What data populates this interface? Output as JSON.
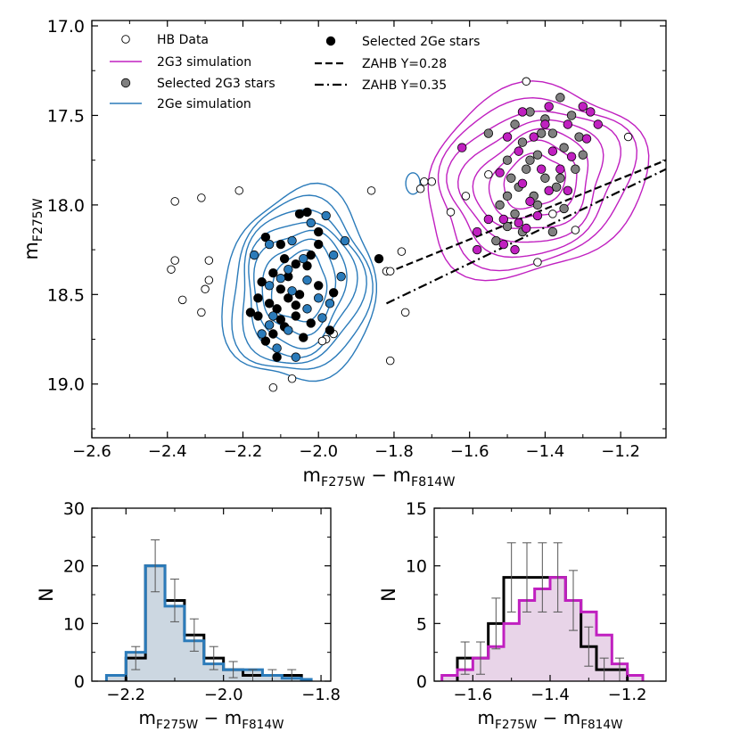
{
  "chart_data": [
    {
      "type": "scatter",
      "panel": "main",
      "xlabel": "m",
      "xlabel_sub": "F275W",
      "xlabel_mid": " − m",
      "xlabel_sub2": "F814W",
      "ylabel": "m",
      "ylabel_sub": "F275W",
      "xlim": [
        -2.6,
        -1.08
      ],
      "ylim": [
        19.3,
        16.97
      ],
      "xticks": [
        -2.6,
        -2.4,
        -2.2,
        -2.0,
        -1.8,
        -1.6,
        -1.4,
        -1.2
      ],
      "xtick_labels": [
        "−2.6",
        "−2.4",
        "−2.2",
        "−2.0",
        "−1.8",
        "−1.6",
        "−1.4",
        "−1.2"
      ],
      "yticks": [
        17.0,
        17.5,
        18.0,
        18.5,
        19.0
      ],
      "ytick_labels": [
        "17.0",
        "17.5",
        "18.0",
        "18.5",
        "19.0"
      ],
      "legend": {
        "placement": "top-left",
        "entries": [
          {
            "label": "HB Data",
            "marker": "open-circle"
          },
          {
            "label": "2G3 simulation",
            "marker": "line",
            "color": "#c020c0"
          },
          {
            "label": "Selected 2G3 stars",
            "marker": "filled-circle",
            "color": "#808080"
          },
          {
            "label": "2Ge simulation",
            "marker": "line",
            "color": "#2b7bba"
          },
          {
            "label": "Selected 2Ge stars",
            "marker": "filled-circle",
            "color": "#000000"
          },
          {
            "label": "ZAHB Y=0.28",
            "marker": "dashed-line",
            "color": "#000000"
          },
          {
            "label": "ZAHB Y=0.35",
            "marker": "dashdot-line",
            "color": "#000000"
          }
        ]
      },
      "colors": {
        "g3": "#c020c0",
        "ge": "#2b7bba",
        "gray": "#808080",
        "black": "#000000"
      },
      "series": [
        {
          "name": "HB Data",
          "style": "open",
          "points": [
            [
              -2.38,
              17.98
            ],
            [
              -2.31,
              17.96
            ],
            [
              -2.21,
              17.92
            ],
            [
              -2.38,
              18.31
            ],
            [
              -2.39,
              18.36
            ],
            [
              -2.29,
              18.31
            ],
            [
              -2.29,
              18.42
            ],
            [
              -2.3,
              18.47
            ],
            [
              -2.36,
              18.53
            ],
            [
              -2.31,
              18.6
            ],
            [
              -1.86,
              17.92
            ],
            [
              -1.82,
              18.37
            ],
            [
              -1.81,
              18.37
            ],
            [
              -1.78,
              18.26
            ],
            [
              -1.77,
              18.6
            ],
            [
              -1.81,
              18.87
            ],
            [
              -1.96,
              18.72
            ],
            [
              -1.98,
              18.75
            ],
            [
              -1.99,
              18.76
            ],
            [
              -2.07,
              18.97
            ],
            [
              -2.12,
              19.02
            ],
            [
              -1.72,
              17.87
            ],
            [
              -1.7,
              17.87
            ],
            [
              -1.73,
              17.91
            ],
            [
              -1.65,
              18.04
            ],
            [
              -1.61,
              17.95
            ],
            [
              -1.45,
              17.31
            ],
            [
              -1.42,
              18.32
            ],
            [
              -1.32,
              18.14
            ],
            [
              -1.18,
              17.62
            ],
            [
              -1.55,
              17.83
            ],
            [
              -1.38,
              18.05
            ]
          ]
        },
        {
          "name": "Selected 2Ge stars",
          "style": "filled",
          "color": "#000000",
          "points": [
            [
              -2.14,
              18.18
            ],
            [
              -2.1,
              18.22
            ],
            [
              -2.05,
              18.05
            ],
            [
              -2.03,
              18.04
            ],
            [
              -2.0,
              18.15
            ],
            [
              -2.09,
              18.3
            ],
            [
              -2.06,
              18.33
            ],
            [
              -2.12,
              18.38
            ],
            [
              -2.15,
              18.43
            ],
            [
              -2.1,
              18.47
            ],
            [
              -2.05,
              18.5
            ],
            [
              -2.08,
              18.52
            ],
            [
              -2.13,
              18.55
            ],
            [
              -2.11,
              18.58
            ],
            [
              -2.06,
              18.62
            ],
            [
              -2.16,
              18.62
            ],
            [
              -2.02,
              18.66
            ],
            [
              -2.09,
              18.68
            ],
            [
              -2.14,
              18.76
            ],
            [
              -2.11,
              18.85
            ],
            [
              -2.0,
              18.45
            ],
            [
              -2.03,
              18.34
            ],
            [
              -1.97,
              18.7
            ],
            [
              -2.08,
              18.4
            ],
            [
              -2.02,
              18.28
            ],
            [
              -2.0,
              18.22
            ],
            [
              -1.96,
              18.49
            ],
            [
              -2.16,
              18.52
            ],
            [
              -2.12,
              18.72
            ],
            [
              -2.06,
              18.56
            ],
            [
              -2.1,
              18.64
            ],
            [
              -1.84,
              18.3
            ],
            [
              -2.18,
              18.6
            ],
            [
              -2.04,
              18.74
            ]
          ]
        },
        {
          "name": "2Ge selected (blue)",
          "style": "filled",
          "color": "#2b7bba",
          "points": [
            [
              -2.17,
              18.28
            ],
            [
              -2.13,
              18.22
            ],
            [
              -2.07,
              18.2
            ],
            [
              -2.02,
              18.1
            ],
            [
              -1.98,
              18.06
            ],
            [
              -2.08,
              18.36
            ],
            [
              -2.03,
              18.42
            ],
            [
              -2.13,
              18.45
            ],
            [
              -2.07,
              18.48
            ],
            [
              -1.97,
              18.55
            ],
            [
              -2.12,
              18.62
            ],
            [
              -2.03,
              18.58
            ],
            [
              -2.08,
              18.7
            ],
            [
              -2.11,
              18.8
            ],
            [
              -1.96,
              18.28
            ],
            [
              -1.94,
              18.4
            ],
            [
              -1.99,
              18.63
            ],
            [
              -2.06,
              18.85
            ],
            [
              -2.15,
              18.72
            ],
            [
              -1.93,
              18.2
            ],
            [
              -2.1,
              18.41
            ],
            [
              -2.0,
              18.52
            ],
            [
              -2.13,
              18.67
            ],
            [
              -2.04,
              18.3
            ]
          ]
        },
        {
          "name": "Selected 2G3 stars",
          "style": "filled",
          "color": "#808080",
          "points": [
            [
              -1.48,
              17.55
            ],
            [
              -1.44,
              17.48
            ],
            [
              -1.4,
              17.52
            ],
            [
              -1.36,
              17.4
            ],
            [
              -1.33,
              17.5
            ],
            [
              -1.46,
              17.65
            ],
            [
              -1.42,
              17.72
            ],
            [
              -1.38,
              17.6
            ],
            [
              -1.35,
              17.68
            ],
            [
              -1.5,
              17.75
            ],
            [
              -1.45,
              17.8
            ],
            [
              -1.4,
              17.85
            ],
            [
              -1.32,
              17.8
            ],
            [
              -1.47,
              17.9
            ],
            [
              -1.43,
              17.95
            ],
            [
              -1.37,
              17.9
            ],
            [
              -1.52,
              18.0
            ],
            [
              -1.48,
              18.05
            ],
            [
              -1.42,
              18.0
            ],
            [
              -1.35,
              18.02
            ],
            [
              -1.5,
              18.12
            ],
            [
              -1.46,
              18.15
            ],
            [
              -1.53,
              18.2
            ],
            [
              -1.38,
              18.15
            ],
            [
              -1.55,
              17.6
            ],
            [
              -1.3,
              17.72
            ],
            [
              -1.41,
              17.6
            ],
            [
              -1.44,
              17.75
            ],
            [
              -1.36,
              17.85
            ],
            [
              -1.49,
              17.85
            ],
            [
              -1.31,
              17.62
            ],
            [
              -1.5,
              17.95
            ]
          ]
        },
        {
          "name": "2G3 selected (magenta)",
          "style": "filled",
          "color": "#c020c0",
          "points": [
            [
              -1.3,
              17.45
            ],
            [
              -1.28,
              17.48
            ],
            [
              -1.34,
              17.55
            ],
            [
              -1.39,
              17.45
            ],
            [
              -1.46,
              17.48
            ],
            [
              -1.5,
              17.62
            ],
            [
              -1.43,
              17.62
            ],
            [
              -1.38,
              17.7
            ],
            [
              -1.33,
              17.73
            ],
            [
              -1.29,
              17.63
            ],
            [
              -1.47,
              17.7
            ],
            [
              -1.41,
              17.8
            ],
            [
              -1.36,
              17.8
            ],
            [
              -1.52,
              17.82
            ],
            [
              -1.46,
              17.88
            ],
            [
              -1.39,
              17.92
            ],
            [
              -1.44,
              17.98
            ],
            [
              -1.51,
              18.08
            ],
            [
              -1.47,
              18.1
            ],
            [
              -1.42,
              18.06
            ],
            [
              -1.55,
              18.08
            ],
            [
              -1.58,
              18.15
            ],
            [
              -1.51,
              18.22
            ],
            [
              -1.48,
              18.25
            ],
            [
              -1.58,
              18.25
            ],
            [
              -1.26,
              17.55
            ],
            [
              -1.62,
              17.68
            ],
            [
              -1.45,
              18.13
            ],
            [
              -1.4,
              17.55
            ],
            [
              -1.34,
              17.92
            ]
          ]
        }
      ],
      "contours": [
        {
          "name": "2G3 simulation",
          "center": [
            -1.43,
            17.87
          ],
          "spread": [
            0.3,
            0.51
          ],
          "rotation_deg": -25,
          "levels": [
            1.0,
            0.88,
            0.76,
            0.64,
            0.52,
            0.4,
            0.28
          ]
        },
        {
          "name": "2Ge simulation",
          "center": [
            -2.05,
            18.46
          ],
          "spread": [
            0.2,
            0.54
          ],
          "rotation_deg": 10,
          "levels": [
            1.0,
            0.9,
            0.8,
            0.7,
            0.6,
            0.48,
            0.36
          ]
        }
      ],
      "zahb": [
        {
          "name": "ZAHB Y=0.28",
          "style": "dashed",
          "x": [
            -1.82,
            -1.08
          ],
          "y": [
            18.38,
            17.75
          ]
        },
        {
          "name": "ZAHB Y=0.35",
          "style": "dashdot",
          "x": [
            -1.82,
            -1.08
          ],
          "y": [
            18.55,
            17.8
          ]
        }
      ]
    },
    {
      "type": "histogram",
      "panel": "bottom-left",
      "xlabel": "m",
      "xlabel_sub": "F275W",
      "xlabel_mid": " − m",
      "xlabel_sub2": "F814W",
      "ylabel": "N",
      "xlim": [
        -2.27,
        -1.78
      ],
      "ylim": [
        0,
        30
      ],
      "xticks": [
        -2.2,
        -2.0,
        -1.8
      ],
      "xtick_labels": [
        "−2.2",
        "−2.0",
        "−1.8"
      ],
      "yticks": [
        0,
        10,
        20,
        30
      ],
      "ytick_labels": [
        "0",
        "10",
        "20",
        "30"
      ],
      "bin_edges": [
        -2.2,
        -2.16,
        -2.12,
        -2.08,
        -2.04,
        -2.0,
        -1.96,
        -1.92,
        -1.88,
        -1.84
      ],
      "observed": [
        4,
        20,
        14,
        8,
        4,
        2,
        1,
        1,
        1
      ],
      "observed_err": [
        2.0,
        4.5,
        3.7,
        2.8,
        2.0,
        1.4,
        1.0,
        1.0,
        1.0
      ],
      "simulation_edges": [
        -2.24,
        -2.2,
        -2.16,
        -2.12,
        -2.08,
        -2.04,
        -2.0,
        -1.96,
        -1.92,
        -1.88,
        -1.84,
        -1.82
      ],
      "simulation": [
        1,
        5,
        20,
        13,
        7,
        3,
        2,
        2,
        1,
        0.5,
        0.3
      ],
      "simulation_color": "#2b7bba",
      "fill_color": "#c6d3de"
    },
    {
      "type": "histogram",
      "panel": "bottom-right",
      "xlabel": "m",
      "xlabel_sub": "F275W",
      "xlabel_mid": " − m",
      "xlabel_sub2": "F814W",
      "ylabel": "N",
      "xlim": [
        -1.7,
        -1.1
      ],
      "ylim": [
        0,
        15
      ],
      "xticks": [
        -1.6,
        -1.4,
        -1.2
      ],
      "xtick_labels": [
        "−1.6",
        "−1.4",
        "−1.2"
      ],
      "yticks": [
        0,
        5,
        10,
        15
      ],
      "ytick_labels": [
        "0",
        "5",
        "10",
        "15"
      ],
      "bin_edges": [
        -1.64,
        -1.6,
        -1.56,
        -1.52,
        -1.48,
        -1.44,
        -1.4,
        -1.36,
        -1.32,
        -1.28,
        -1.24,
        -1.2
      ],
      "observed": [
        2,
        2,
        5,
        9,
        9,
        9,
        9,
        7,
        3,
        1,
        1
      ],
      "observed_err": [
        1.4,
        1.4,
        2.2,
        3.0,
        3.0,
        3.0,
        3.0,
        2.6,
        1.7,
        1.0,
        1.0
      ],
      "simulation_edges": [
        -1.68,
        -1.64,
        -1.6,
        -1.56,
        -1.52,
        -1.48,
        -1.44,
        -1.4,
        -1.36,
        -1.32,
        -1.28,
        -1.24,
        -1.2,
        -1.16
      ],
      "simulation": [
        0.5,
        1,
        2,
        3,
        5,
        7,
        8,
        9,
        7,
        6,
        4,
        1.5,
        0.5
      ],
      "simulation_color": "#c020c0",
      "fill_color": "#e6cfe6"
    }
  ]
}
